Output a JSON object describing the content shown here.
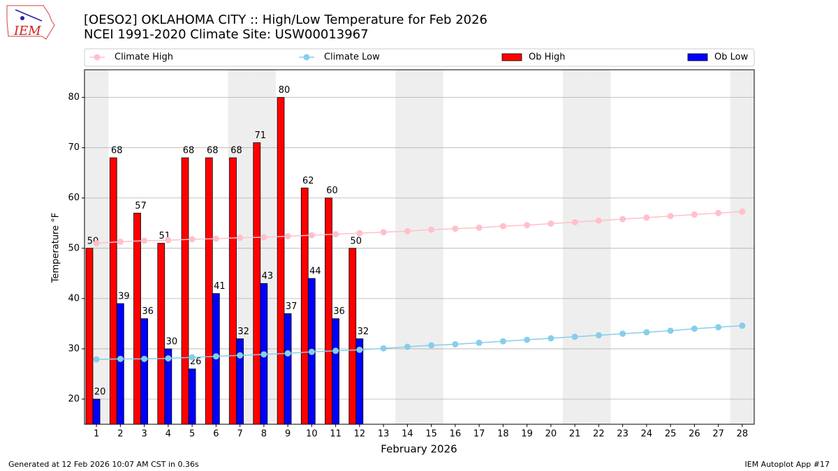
{
  "chart_data": {
    "type": "bar",
    "title": "[OESO2] OKLAHOMA CITY :: High/Low Temperature for Feb 2026",
    "subtitle": "NCEI 1991-2020 Climate Site: USW00013967",
    "xlabel": "February 2026",
    "ylabel": "Temperature °F",
    "footer_left": "Generated at 12 Feb 2026 10:07 AM CST in 0.36s",
    "footer_right": "IEM Autoplot App #17",
    "logo": "IEM",
    "categories": [
      1,
      2,
      3,
      4,
      5,
      6,
      7,
      8,
      9,
      10,
      11,
      12,
      13,
      14,
      15,
      16,
      17,
      18,
      19,
      20,
      21,
      22,
      23,
      24,
      25,
      26,
      27,
      28
    ],
    "shaded": [
      1,
      7,
      8,
      14,
      15,
      21,
      22,
      28
    ],
    "series": [
      {
        "name": "Climate High",
        "color": "#ffc0cb",
        "kind": "line",
        "values": [
          51.0,
          51.3,
          51.5,
          51.6,
          51.8,
          51.9,
          52.1,
          52.2,
          52.4,
          52.6,
          52.8,
          53.0,
          53.2,
          53.4,
          53.7,
          53.9,
          54.1,
          54.4,
          54.6,
          54.9,
          55.2,
          55.5,
          55.8,
          56.1,
          56.4,
          56.7,
          57.0,
          57.3
        ]
      },
      {
        "name": "Climate Low",
        "color": "#87ceeb",
        "kind": "line",
        "values": [
          27.9,
          28.0,
          28.0,
          28.1,
          28.3,
          28.5,
          28.7,
          28.9,
          29.1,
          29.4,
          29.6,
          29.8,
          30.1,
          30.4,
          30.7,
          30.9,
          31.2,
          31.5,
          31.8,
          32.1,
          32.4,
          32.7,
          33.0,
          33.3,
          33.6,
          34.0,
          34.3,
          34.6
        ]
      },
      {
        "name": "Ob High",
        "color": "#ff0000",
        "kind": "bar",
        "values": [
          50,
          68,
          57,
          51,
          68,
          68,
          68,
          71,
          80,
          62,
          60,
          50,
          null,
          null,
          null,
          null,
          null,
          null,
          null,
          null,
          null,
          null,
          null,
          null,
          null,
          null,
          null,
          null
        ]
      },
      {
        "name": "Ob Low",
        "color": "#0000ff",
        "kind": "bar",
        "values": [
          20,
          39,
          36,
          30,
          26,
          41,
          32,
          43,
          37,
          44,
          36,
          32,
          null,
          null,
          null,
          null,
          null,
          null,
          null,
          null,
          null,
          null,
          null,
          null,
          null,
          null,
          null,
          null
        ]
      }
    ],
    "xlim": [
      0.5,
      28.5
    ],
    "ylim": [
      15,
      85.5
    ],
    "yticks": [
      20,
      30,
      40,
      50,
      60,
      70,
      80
    ],
    "grid": true
  }
}
